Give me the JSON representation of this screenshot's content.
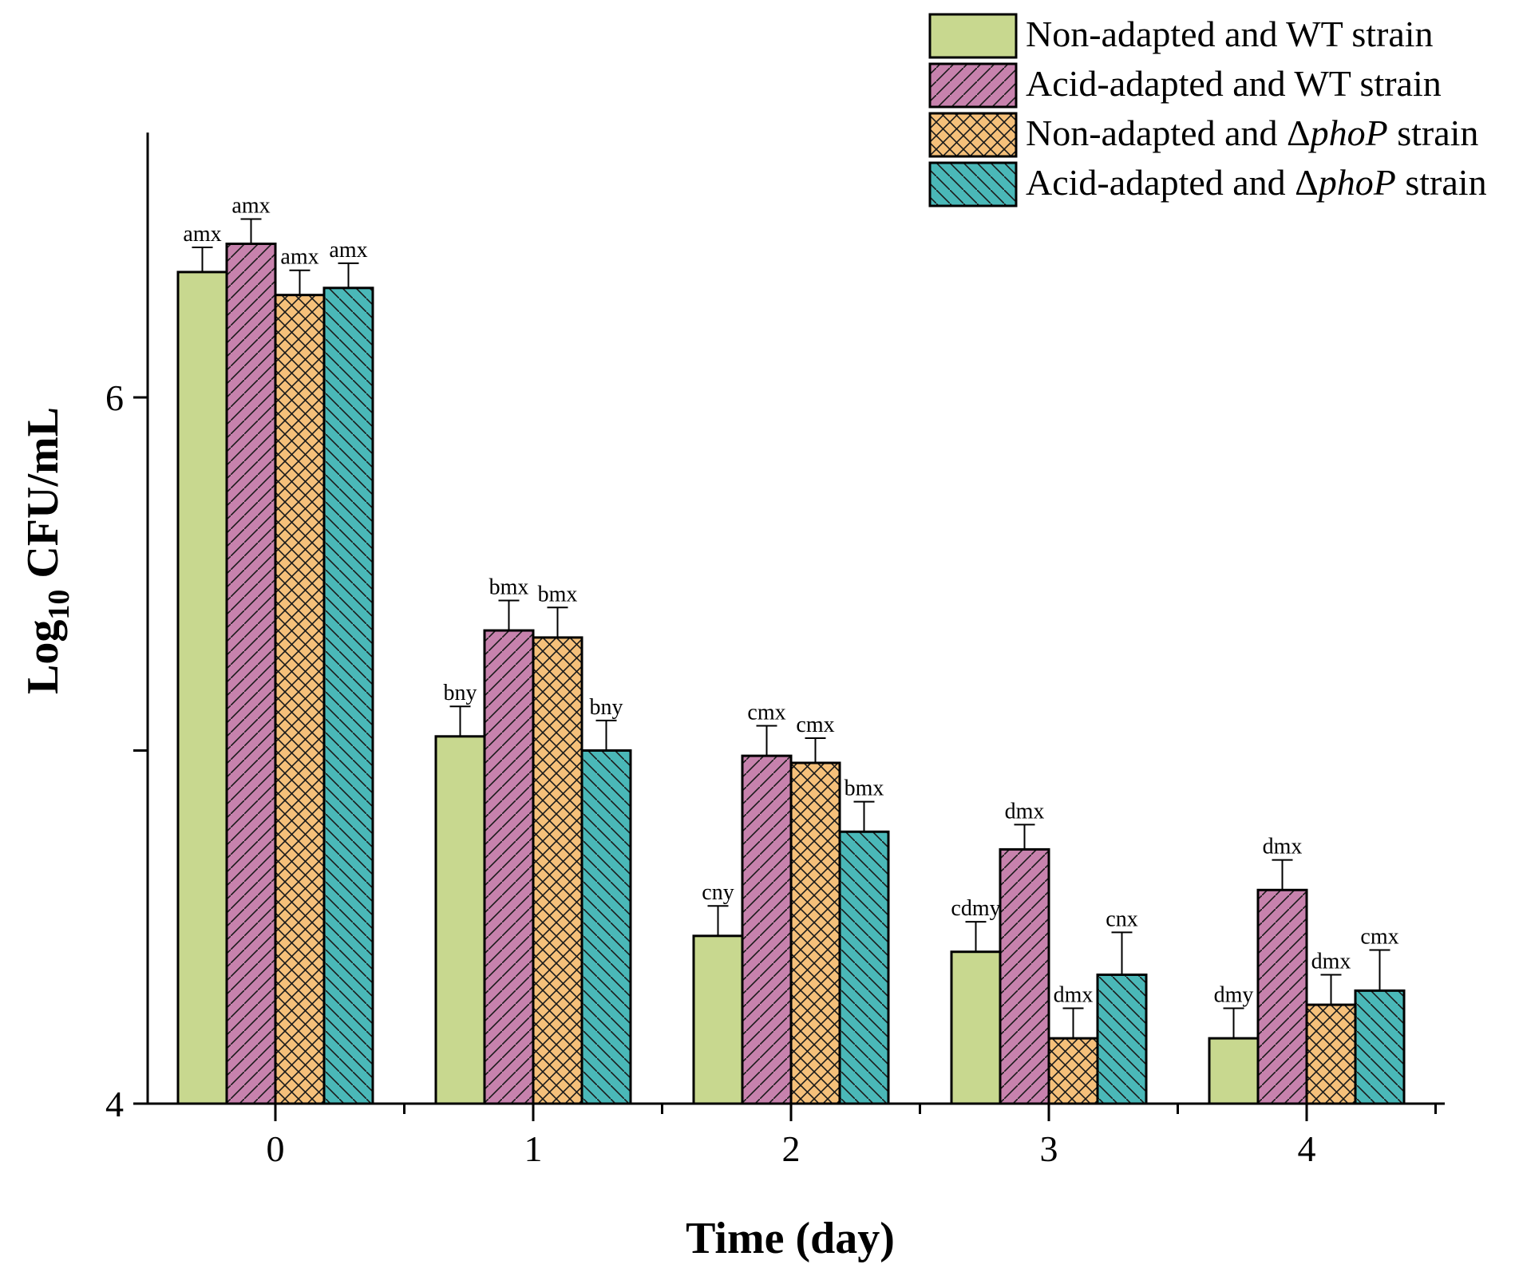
{
  "chart_data": {
    "type": "bar",
    "title": "",
    "xlabel": "Time (day)",
    "ylabel_main": "Log",
    "ylabel_sub": "10",
    "ylabel_rest": " CFU/mL",
    "ylim": [
      4,
      6.75
    ],
    "yticks": [
      4,
      5,
      6
    ],
    "ytick_labels": [
      "4",
      "",
      "6"
    ],
    "categories": [
      "0",
      "1",
      "2",
      "3",
      "4"
    ],
    "legend_position": "top-right",
    "series": [
      {
        "name": "Non-adapted and WT strain",
        "legend_parts": [
          {
            "t": "Non-adapted and WT strain",
            "i": false
          }
        ],
        "fill": "#c8d88f",
        "pattern": "none",
        "values": [
          6.355,
          5.04,
          4.475,
          4.43,
          4.185
        ],
        "errors": [
          0.07,
          0.085,
          0.085,
          0.085,
          0.085
        ],
        "labels": [
          "amx",
          "bny",
          "cny",
          "cdmy",
          "dmy"
        ]
      },
      {
        "name": "Acid-adapted and WT strain",
        "legend_parts": [
          {
            "t": "Acid-adapted and WT strain",
            "i": false
          }
        ],
        "fill": "#c782ad",
        "pattern": "diag-up",
        "values": [
          6.435,
          5.34,
          4.985,
          4.72,
          4.605
        ],
        "errors": [
          0.07,
          0.085,
          0.085,
          0.07,
          0.085
        ],
        "labels": [
          "amx",
          "bmx",
          "cmx",
          "dmx",
          "dmx"
        ]
      },
      {
        "name": "Non-adapted and ΔphoP strain",
        "legend_parts": [
          {
            "t": "Non-adapted and Δ",
            "i": false
          },
          {
            "t": "phoP",
            "i": true
          },
          {
            "t": " strain",
            "i": false
          }
        ],
        "fill": "#f5c07a",
        "pattern": "cross",
        "values": [
          6.29,
          5.32,
          4.965,
          4.185,
          4.28
        ],
        "errors": [
          0.07,
          0.085,
          0.07,
          0.085,
          0.085
        ],
        "labels": [
          "amx",
          "bmx",
          "cmx",
          "dmx",
          "dmx"
        ]
      },
      {
        "name": "Acid-adapted and ΔphoP strain",
        "legend_parts": [
          {
            "t": "Acid-adapted and Δ",
            "i": false
          },
          {
            "t": "phoP",
            "i": true
          },
          {
            "t": " strain",
            "i": false
          }
        ],
        "fill": "#4ab8b8",
        "pattern": "diag-down",
        "values": [
          6.31,
          5.0,
          4.77,
          4.365,
          4.32
        ],
        "errors": [
          0.07,
          0.085,
          0.085,
          0.12,
          0.115
        ],
        "labels": [
          "amx",
          "bny",
          "bmx",
          "cnx",
          "cmx"
        ]
      }
    ]
  }
}
